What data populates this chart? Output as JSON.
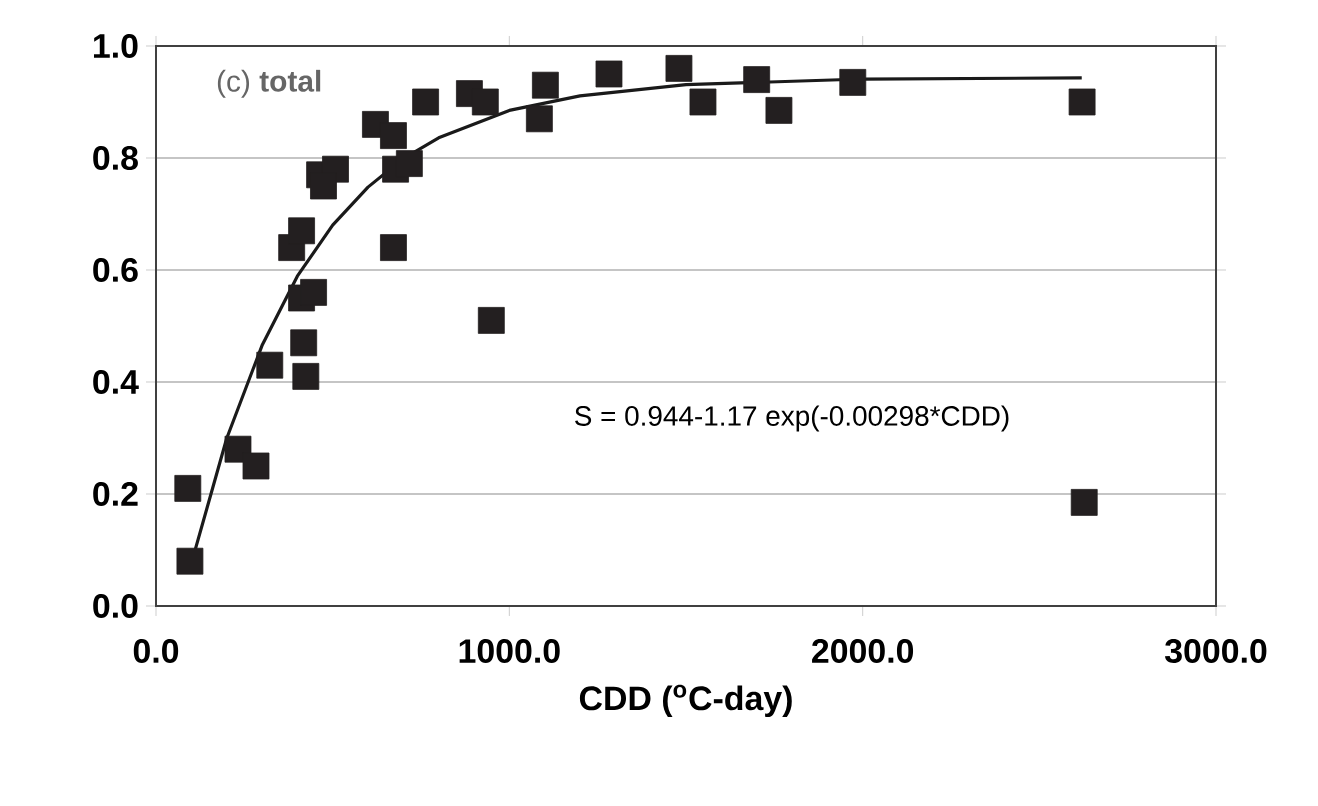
{
  "chart_data": {
    "type": "scatter",
    "title": "(c) **total**",
    "xlabel": "CDD ($^{o}$C-day)",
    "annotations": [
      "S = 0.944-1.17 exp(-0.00298*CDD)"
    ],
    "series": [
      {
        "color": "#231f20",
        "marker": "square",
        "x": [
          96,
          90,
          232,
          283,
          322,
          384,
          412,
          418,
          424,
          412,
          446,
          463,
          508,
          474,
          621,
          672,
          672,
          678,
          717,
          763,
          887,
          932,
          949,
          1085,
          1102,
          1282,
          1480,
          1548,
          1700,
          1763,
          1972,
          2621,
          2627
        ],
        "values": [
          0.08,
          0.21,
          0.28,
          0.25,
          0.43,
          0.64,
          0.67,
          0.47,
          0.41,
          0.55,
          0.56,
          0.77,
          0.78,
          0.75,
          0.86,
          0.84,
          0.64,
          0.78,
          0.79,
          0.9,
          0.915,
          0.9,
          0.51,
          0.87,
          0.93,
          0.95,
          0.96,
          0.9,
          0.94,
          0.885,
          0.935,
          0.9,
          0.185
        ]
      },
      {
        "type": "line",
        "color": "#1a1a1a",
        "marker": "none",
        "line_style": "solid",
        "x": [
          100,
          200,
          300,
          400,
          500,
          600,
          700,
          800,
          1000,
          1200,
          1500,
          2000,
          2620
        ],
        "values": [
          0.076,
          0.299,
          0.465,
          0.589,
          0.68,
          0.748,
          0.799,
          0.836,
          0.885,
          0.911,
          0.931,
          0.941,
          0.943
        ]
      }
    ],
    "xlim": [
      0,
      3000
    ],
    "xticks": [
      {
        "value": 0,
        "label": "0.0"
      },
      {
        "value": 1000,
        "label": "1000.0"
      },
      {
        "value": 2000,
        "label": "2000.0"
      },
      {
        "value": 3000,
        "label": "3000.0"
      }
    ],
    "ylim": [
      0,
      1
    ],
    "yticks": [
      {
        "value": 0,
        "label": "0.0"
      },
      {
        "value": 0.2,
        "label": "0.2"
      },
      {
        "value": 0.4,
        "label": "0.4"
      },
      {
        "value": 0.6,
        "label": "0.6"
      },
      {
        "value": 0.8,
        "label": "0.8"
      },
      {
        "value": 1,
        "label": "1.0"
      }
    ],
    "grid": "y"
  }
}
